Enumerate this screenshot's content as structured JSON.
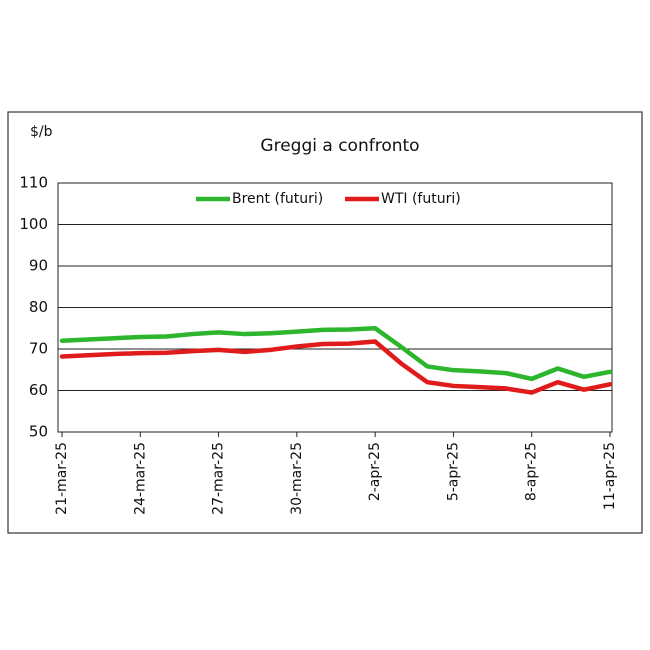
{
  "chart_data": {
    "type": "line",
    "title": "Greggi a confronto",
    "y_label": "$/b",
    "categories": [
      "21-mar-25",
      null,
      null,
      "24-mar-25",
      null,
      null,
      "27-mar-25",
      null,
      null,
      "30-mar-25",
      null,
      null,
      "2-apr-25",
      null,
      null,
      "5-apr-25",
      null,
      null,
      "8-apr-25",
      null,
      null,
      "11-apr-25"
    ],
    "series": [
      {
        "name": "Brent (futuri)",
        "color": "#2db52d",
        "values": [
          72,
          72.3,
          72.6,
          72.9,
          73,
          73.6,
          74,
          73.6,
          73.8,
          74.2,
          74.6,
          74.7,
          75,
          70.5,
          65.8,
          64.9,
          64.6,
          64.2,
          62.8,
          65.3,
          63.3,
          64.5
        ]
      },
      {
        "name": "WTI (futuri)",
        "color": "#e01b1b",
        "values": [
          68.2,
          68.5,
          68.8,
          69,
          69.1,
          69.5,
          69.8,
          69.3,
          69.8,
          70.6,
          71.2,
          71.3,
          71.8,
          66.5,
          62,
          61.1,
          60.8,
          60.5,
          59.5,
          62,
          60.2,
          61.5
        ]
      }
    ],
    "ylim": [
      50,
      110
    ],
    "yticks": [
      50,
      60,
      70,
      80,
      90,
      100,
      110
    ],
    "grid": true,
    "legend": "top"
  }
}
